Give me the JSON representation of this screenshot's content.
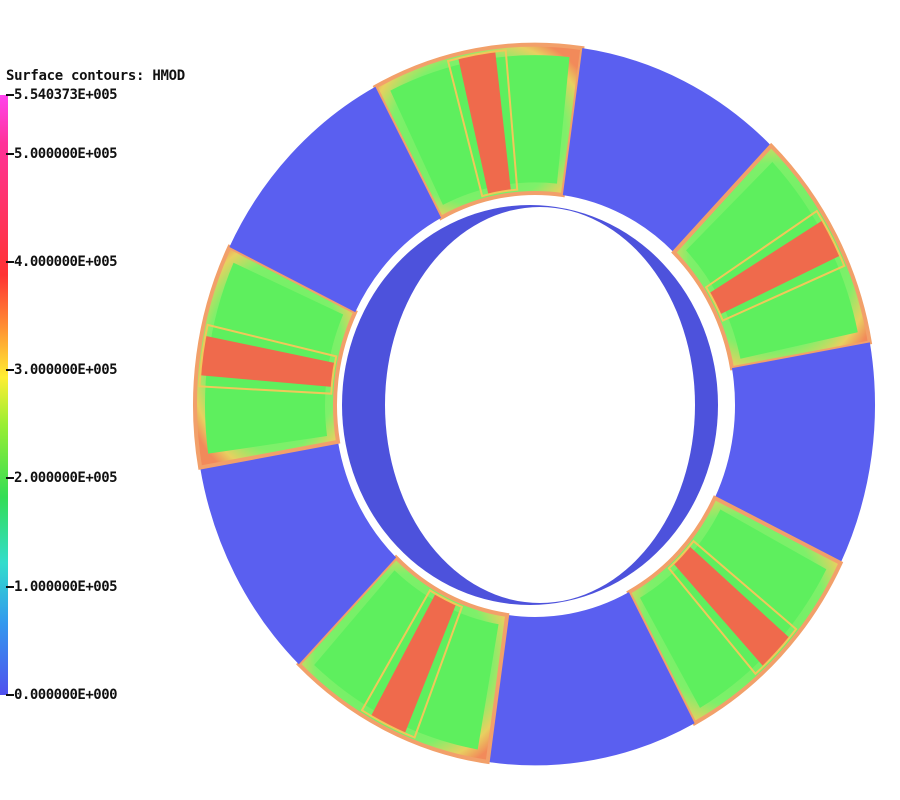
{
  "legend": {
    "title": "Surface contours: HMOD",
    "ticks": [
      {
        "label": "5.540373E+005",
        "value": 554037.3
      },
      {
        "label": "5.000000E+005",
        "value": 500000
      },
      {
        "label": "4.000000E+005",
        "value": 400000
      },
      {
        "label": "3.000000E+005",
        "value": 300000
      },
      {
        "label": "2.000000E+005",
        "value": 200000
      },
      {
        "label": "1.000000E+005",
        "value": 100000
      },
      {
        "label": "0.000000E+000",
        "value": 0
      }
    ],
    "min": 0,
    "max": 554037.3
  },
  "colors": {
    "spacer": "#5a5ff0",
    "spacer_side": "#4a4fd8",
    "magnet_core": "#5eef5e",
    "magnet_edge": "#f2a06a",
    "magnet_band": "#ef6a4c"
  },
  "ring": {
    "spacer_segments": 5,
    "magnet_segments": 5
  }
}
